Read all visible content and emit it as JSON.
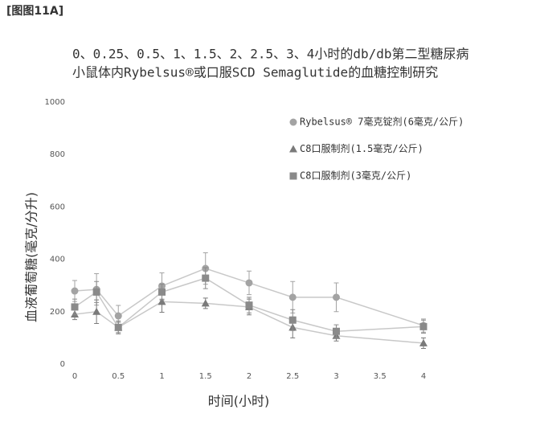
{
  "chart_data": {
    "type": "line",
    "figure_label": "[图图11A]",
    "title": [
      "0、0.25、0.5、1、1.5、2、2.5、3、4小时的db/db第二型糖尿病",
      "小鼠体内Rybelsus®或口服SCD Semaglutide的血糖控制研究"
    ],
    "xlabel": "时间(小时)",
    "ylabel": "血液葡萄糖(毫克/分升)",
    "x": [
      0,
      0.25,
      0.5,
      1,
      1.5,
      2,
      2.5,
      3,
      4
    ],
    "series": [
      {
        "name": "Rybelsus® 7毫克锭剂(6毫克/公斤)",
        "color": "#a3a3a3",
        "marker": "circle",
        "values": [
          279,
          285,
          184,
          298,
          365,
          310,
          255,
          255,
          147
        ],
        "errors": [
          40,
          60,
          40,
          50,
          60,
          45,
          60,
          55,
          25
        ]
      },
      {
        "name": "C8口服制剂(1.5毫克/公斤)",
        "color": "#7a7a7a",
        "marker": "triangle",
        "values": [
          190,
          200,
          140,
          238,
          232,
          218,
          140,
          108,
          80
        ],
        "errors": [
          20,
          45,
          20,
          40,
          20,
          30,
          40,
          20,
          20
        ]
      },
      {
        "name": "C8口服制剂(3毫克/公斤)",
        "color": "#8a8a8a",
        "marker": "square",
        "values": [
          218,
          275,
          140,
          275,
          328,
          225,
          168,
          125,
          143
        ],
        "errors": [
          30,
          40,
          25,
          30,
          40,
          30,
          40,
          25,
          25
        ]
      }
    ],
    "xlim": [
      0,
      4
    ],
    "xticks": [
      0,
      0.5,
      1,
      1.5,
      2,
      2.5,
      3,
      3.5,
      4
    ],
    "ylim": [
      0,
      1000
    ],
    "yticks": [
      0,
      200,
      400,
      600,
      800,
      1000
    ],
    "grid": false,
    "legend": "upper right"
  }
}
